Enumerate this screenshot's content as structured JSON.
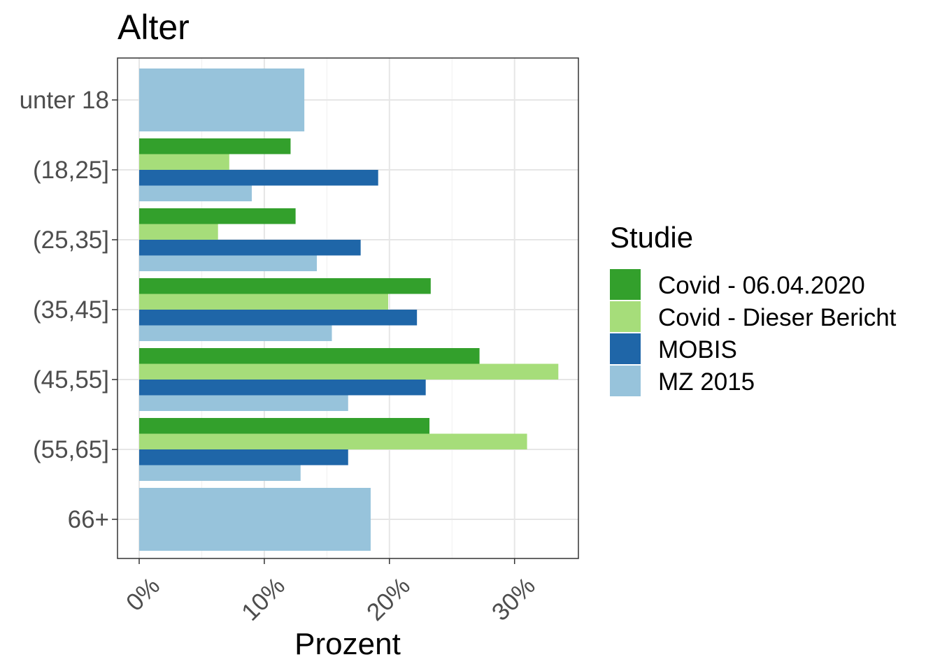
{
  "chart_data": {
    "type": "bar",
    "orientation": "horizontal",
    "title": "Alter",
    "xlabel": "Prozent",
    "ylabel": "",
    "xlim": [
      -0.0175,
      0.35
    ],
    "x_ticks": [
      0,
      0.1,
      0.2,
      0.3
    ],
    "x_tick_labels": [
      "0%",
      "10%",
      "20%",
      "30%"
    ],
    "grid": true,
    "legend_position": "right",
    "legend_title": "Studie",
    "categories": [
      "unter 18",
      "(18,25]",
      "(25,35]",
      "(35,45]",
      "(45,55]",
      "(55,65]",
      "66+"
    ],
    "series": [
      {
        "name": "Covid - 06.04.2020",
        "color": "#33a02c",
        "values": [
          null,
          0.121,
          0.125,
          0.233,
          0.272,
          0.232,
          null
        ]
      },
      {
        "name": "Covid - Dieser Bericht",
        "color": "#a6dd7a",
        "values": [
          null,
          0.072,
          0.063,
          0.199,
          0.335,
          0.31,
          null
        ]
      },
      {
        "name": "MOBIS",
        "color": "#1f66a8",
        "values": [
          null,
          0.191,
          0.177,
          0.222,
          0.229,
          0.167,
          null
        ]
      },
      {
        "name": "MZ 2015",
        "color": "#97c3db",
        "values": [
          0.132,
          0.09,
          0.142,
          0.154,
          0.167,
          0.129,
          0.185
        ]
      }
    ]
  }
}
